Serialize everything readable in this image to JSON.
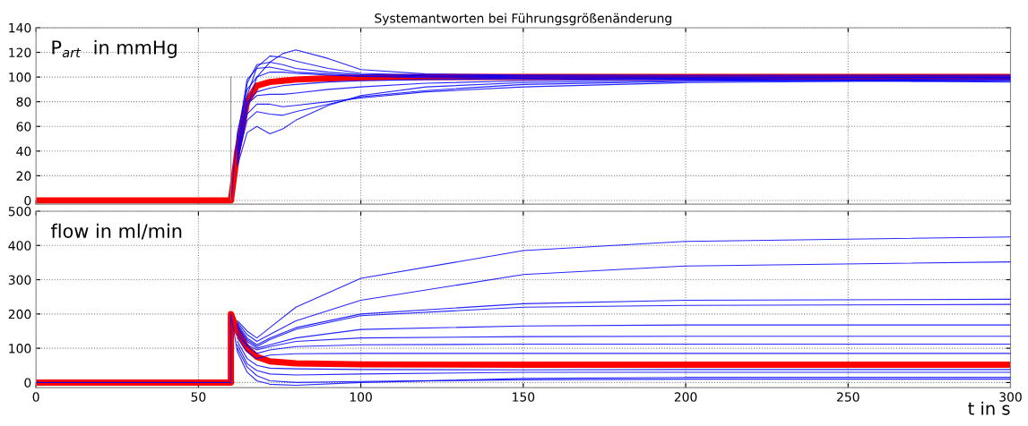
{
  "chart_data": [
    {
      "type": "line",
      "title": "Systemantworten bei Führungsgrößenänderung",
      "annotations": [
        "P$_{art}$  in mmHg"
      ],
      "xlim": [
        0,
        300
      ],
      "xticks": [
        0,
        50,
        100,
        150,
        200,
        250,
        300
      ],
      "ylim": [
        -3,
        140
      ],
      "yticks": [
        0,
        20,
        40,
        60,
        80,
        100,
        120,
        140
      ],
      "grid": true,
      "tick_labels": "y",
      "line_style": "solid",
      "x": [
        0,
        60,
        62,
        65,
        68,
        72,
        76,
        80,
        90,
        100,
        120,
        150,
        200,
        300
      ],
      "series": [
        {
          "color": "#ff0000",
          "values": [
            0,
            0,
            40,
            80,
            93,
            96,
            97,
            98,
            99,
            99.5,
            100,
            100,
            100,
            100
          ]
        },
        {
          "color": "#0000ff",
          "values": [
            null,
            null,
            30,
            75,
            100,
            112,
            119,
            122,
            115,
            106,
            102.5,
            101.6,
            101.5,
            101.5
          ]
        },
        {
          "color": "#0000ff",
          "values": [
            null,
            null,
            35,
            85,
            108,
            117,
            116,
            113,
            107,
            103,
            101.6,
            100.9,
            100.8,
            100.8
          ]
        },
        {
          "color": "#0000ff",
          "values": [
            null,
            null,
            40,
            95,
            110,
            112,
            110,
            107,
            104,
            102,
            100.9,
            100.2,
            100.1,
            100.1
          ]
        },
        {
          "color": "#0000ff",
          "values": [
            null,
            null,
            50,
            98,
            107,
            108,
            106,
            104,
            102.5,
            101,
            100.2,
            99.5,
            99.4,
            99.4
          ]
        },
        {
          "color": "#0000ff",
          "values": [
            null,
            null,
            28,
            55,
            60,
            54,
            58,
            65,
            77,
            85,
            92,
            95.5,
            97.3,
            98.7
          ]
        },
        {
          "color": "#0000ff",
          "values": [
            null,
            null,
            33,
            65,
            72,
            70,
            69,
            72,
            78,
            84,
            89,
            94,
            96.5,
            98
          ]
        },
        {
          "color": "#0000ff",
          "values": [
            null,
            null,
            38,
            70,
            78,
            78,
            76,
            77,
            80,
            83,
            88,
            92,
            95.5,
            97.3
          ]
        },
        {
          "color": "#0000ff",
          "values": [
            null,
            null,
            42,
            78,
            85,
            86,
            86,
            87,
            90,
            92,
            95,
            97,
            98.5,
            96.6
          ]
        },
        {
          "color": "#0000ff",
          "values": [
            null,
            null,
            44,
            80,
            88,
            91,
            93,
            94,
            96,
            97,
            98,
            98.5,
            99,
            99.9
          ]
        },
        {
          "color": "#0000ff",
          "values": [
            null,
            0,
            55,
            90,
            100,
            104,
            104,
            103,
            101.5,
            100.5,
            99.5,
            99,
            98,
            95.9
          ]
        },
        {
          "color": "#808080",
          "x": [
            60,
            60
          ],
          "values": [
            0,
            100
          ]
        }
      ]
    },
    {
      "type": "line",
      "xlabel": "t in s",
      "annotations": [
        "flow in ml/min"
      ],
      "xlim": [
        0,
        300
      ],
      "xticks": [
        0,
        50,
        100,
        150,
        200,
        250,
        300
      ],
      "ylim": [
        -15,
        500
      ],
      "yticks": [
        0,
        100,
        200,
        300,
        400,
        500
      ],
      "grid": true,
      "line_style": "solid",
      "x": [
        0,
        60,
        60,
        62,
        65,
        68,
        72,
        80,
        100,
        150,
        200,
        300
      ],
      "series": [
        {
          "color": "#ff0000",
          "values": [
            0,
            0,
            200,
            150,
            100,
            75,
            62,
            56,
            53,
            52,
            52,
            52
          ]
        },
        {
          "color": "#0000ff",
          "values": [
            null,
            null,
            null,
            180,
            150,
            130,
            160,
            220,
            304,
            385,
            412,
            425
          ]
        },
        {
          "color": "#0000ff",
          "values": [
            null,
            null,
            null,
            175,
            140,
            120,
            140,
            180,
            240,
            315,
            340,
            352
          ]
        },
        {
          "color": "#0000ff",
          "values": [
            null,
            null,
            null,
            170,
            130,
            110,
            130,
            160,
            200,
            230,
            240,
            243
          ]
        },
        {
          "color": "#0000ff",
          "values": [
            null,
            null,
            null,
            165,
            125,
            105,
            125,
            155,
            195,
            220,
            225,
            228
          ]
        },
        {
          "color": "#0000ff",
          "values": [
            null,
            null,
            null,
            160,
            120,
            100,
            110,
            130,
            155,
            165,
            168,
            168
          ]
        },
        {
          "color": "#0000ff",
          "values": [
            null,
            null,
            null,
            150,
            110,
            95,
            105,
            120,
            130,
            134,
            135,
            135
          ]
        },
        {
          "color": "#0000ff",
          "values": [
            null,
            null,
            null,
            140,
            105,
            85,
            95,
            105,
            110,
            112,
            112,
            112
          ]
        },
        {
          "color": "#0000ff",
          "values": [
            null,
            null,
            null,
            130,
            90,
            70,
            80,
            84,
            85,
            85,
            85,
            85
          ]
        },
        {
          "color": "#0000ff",
          "values": [
            null,
            null,
            null,
            120,
            70,
            50,
            42,
            40,
            38,
            37,
            38,
            38
          ]
        },
        {
          "color": "#0000ff",
          "values": [
            null,
            null,
            null,
            110,
            55,
            35,
            25,
            22,
            25,
            30,
            30,
            30
          ]
        },
        {
          "color": "#0000ff",
          "values": [
            null,
            null,
            null,
            100,
            45,
            20,
            5,
            0,
            3,
            8,
            10,
            10
          ]
        },
        {
          "color": "#0000ff",
          "values": [
            0,
            0,
            200,
            90,
            30,
            5,
            -5,
            -8,
            0,
            12,
            15,
            15
          ]
        }
      ]
    }
  ]
}
